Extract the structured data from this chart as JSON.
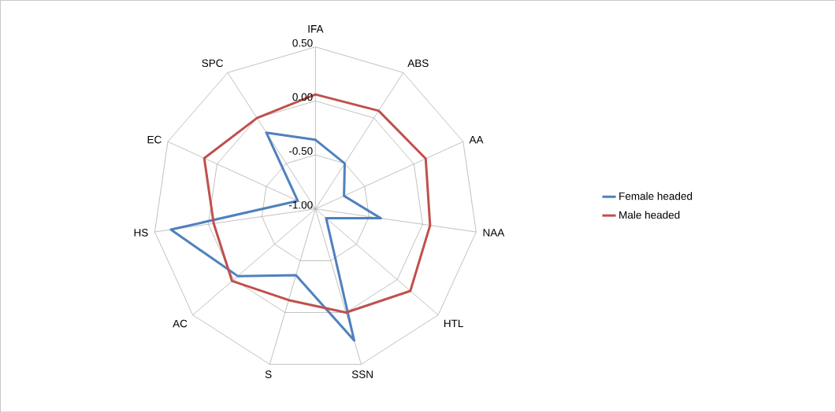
{
  "chart_data": {
    "type": "radar",
    "categories": [
      "IFA",
      "ABS",
      "AA",
      "NAA",
      "HTL",
      "SSN",
      "S",
      "AC",
      "HS",
      "EC",
      "SPC"
    ],
    "series": [
      {
        "name": "Female headed",
        "color": "#4f81bd",
        "values": [
          -0.36,
          -0.5,
          -0.71,
          -0.39,
          -0.87,
          0.27,
          -0.36,
          -0.05,
          0.35,
          -0.82,
          -0.16
        ]
      },
      {
        "name": "Male headed",
        "color": "#c0504d",
        "values": [
          0.06,
          0.08,
          0.12,
          0.07,
          0.16,
          0.0,
          -0.12,
          0.02,
          -0.05,
          0.13,
          0.0
        ]
      }
    ],
    "ylim": [
      -1,
      0.5
    ],
    "yticks": [
      {
        "value": -1,
        "label": "-1.00"
      },
      {
        "value": -0.5,
        "label": "-0.50"
      },
      {
        "value": 0,
        "label": "0.00"
      },
      {
        "value": 0.5,
        "label": "0.50"
      }
    ],
    "grid": true,
    "legend": "right"
  }
}
